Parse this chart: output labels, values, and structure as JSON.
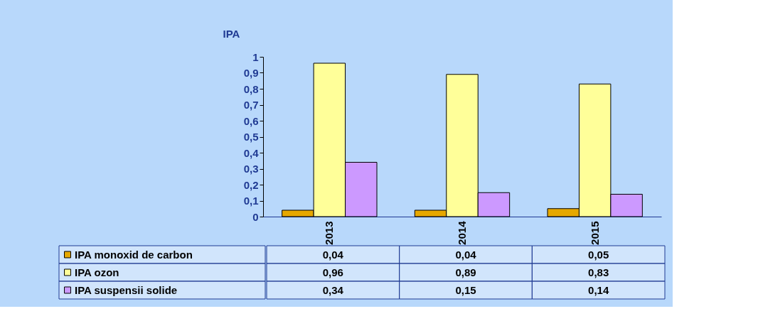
{
  "chart_data": {
    "type": "bar",
    "ylabel": "IPA",
    "categories": [
      "2013",
      "2014",
      "2015"
    ],
    "series": [
      {
        "name": "IPA monoxid de carbon",
        "color": "#e6a800",
        "values": [
          0.04,
          0.04,
          0.05
        ],
        "value_labels": [
          "0,04",
          "0,04",
          "0,05"
        ]
      },
      {
        "name": "IPA ozon",
        "color": "#ffff99",
        "values": [
          0.96,
          0.89,
          0.83
        ],
        "value_labels": [
          "0,96",
          "0,89",
          "0,83"
        ]
      },
      {
        "name": "IPA suspensii solide",
        "color": "#cc99ff",
        "values": [
          0.34,
          0.15,
          0.14
        ],
        "value_labels": [
          "0,34",
          "0,15",
          "0,14"
        ]
      }
    ],
    "ylim": [
      0,
      1
    ],
    "yticks": [
      0,
      {
        "value": 0.1,
        "label": "0,1"
      },
      {
        "value": 0.2,
        "label": "0,2"
      },
      {
        "value": 0.3,
        "label": "0,3"
      },
      {
        "value": 0.4,
        "label": "0,4"
      },
      {
        "value": 0.5,
        "label": "0,5"
      },
      {
        "value": 0.6,
        "label": "0,6"
      },
      {
        "value": 0.7,
        "label": "0,7"
      },
      {
        "value": 0.8,
        "label": "0,8"
      },
      {
        "value": 0.9,
        "label": "0,9"
      },
      1
    ],
    "grid": false,
    "legend": "bottom"
  }
}
